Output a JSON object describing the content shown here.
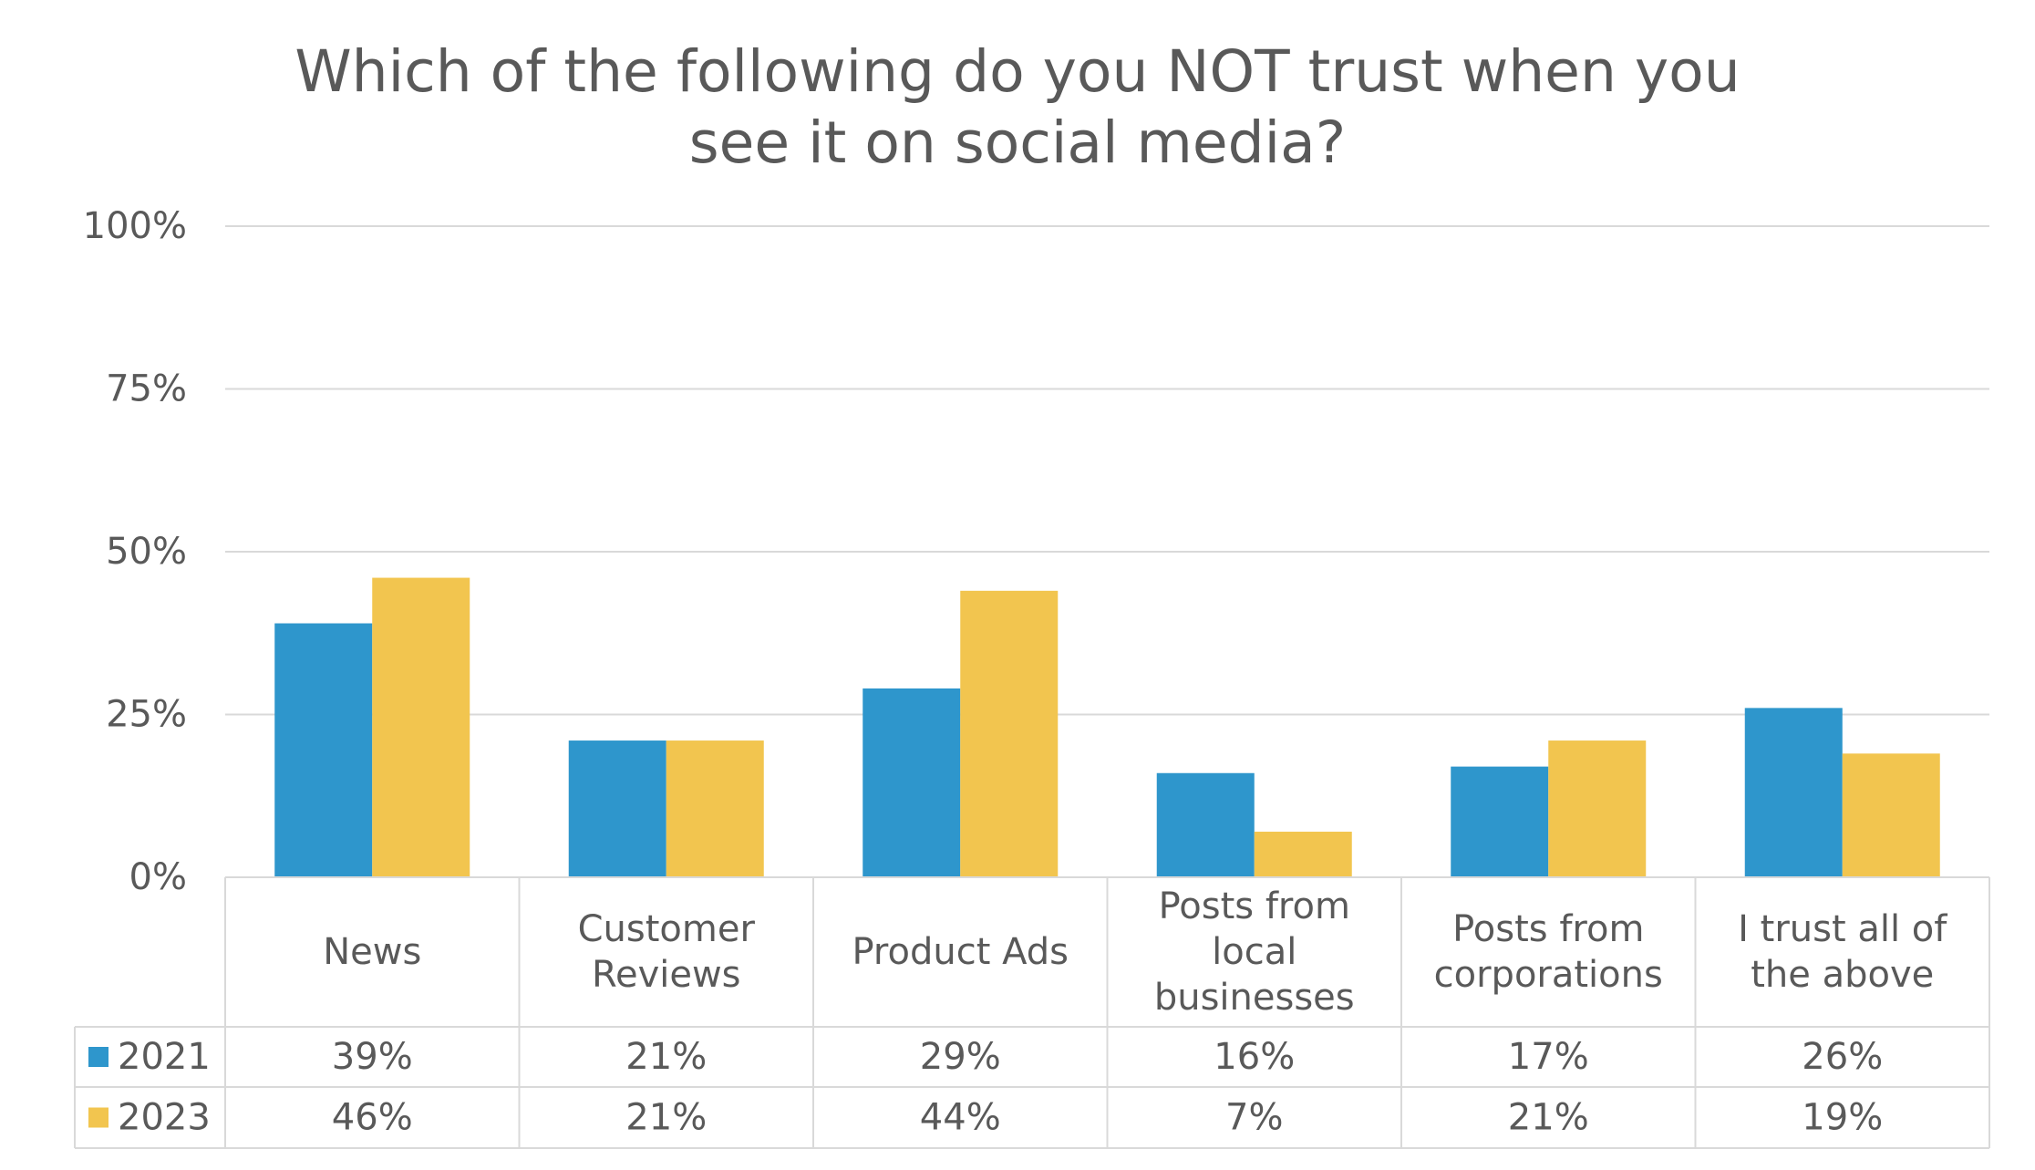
{
  "chart_data": {
    "type": "bar",
    "title_lines": [
      "Which of the following do you NOT trust when you",
      "see it on social media?"
    ],
    "categories": [
      [
        "News"
      ],
      [
        "Customer",
        "Reviews"
      ],
      [
        "Product Ads"
      ],
      [
        "Posts from",
        "local",
        "businesses"
      ],
      [
        "Posts from",
        "corporations"
      ],
      [
        "I trust all of",
        "the above"
      ]
    ],
    "series": [
      {
        "name": "2021",
        "color": "#2E96CC",
        "values": [
          39,
          21,
          29,
          16,
          17,
          26
        ],
        "labels": [
          "39%",
          "21%",
          "29%",
          "16%",
          "17%",
          "26%"
        ]
      },
      {
        "name": "2023",
        "color": "#F2C54F",
        "values": [
          46,
          21,
          44,
          7,
          21,
          19
        ],
        "labels": [
          "46%",
          "21%",
          "44%",
          "7%",
          "21%",
          "19%"
        ]
      }
    ],
    "ylim": [
      0,
      100
    ],
    "yticks": [
      "0%",
      "25%",
      "50%",
      "75%",
      "100%"
    ],
    "ytick_values": [
      0,
      25,
      50,
      75,
      100
    ],
    "grid": true,
    "data_table": true,
    "xlabel": "",
    "ylabel": ""
  }
}
